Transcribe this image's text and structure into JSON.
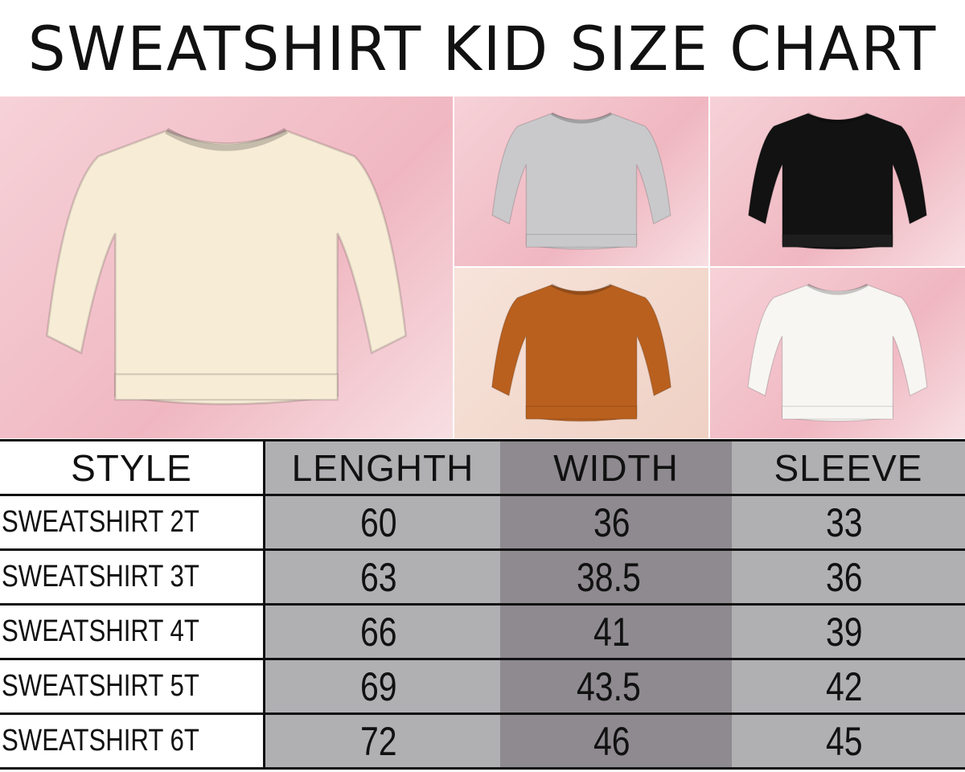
{
  "title": "SWEATSHIRT KID SIZE CHART",
  "photos": [
    {
      "color": "#f7ecd6",
      "label": "cream"
    },
    {
      "color": "#c9c9cb",
      "label": "gray"
    },
    {
      "color": "#121212",
      "label": "black"
    },
    {
      "color": "#b9601f",
      "label": "rust"
    },
    {
      "color": "#f7f6f3",
      "label": "white"
    }
  ],
  "table": {
    "headers": [
      "STYLE",
      "LENGHTH",
      "WIDTH",
      "SLEEVE"
    ],
    "rows": [
      [
        "SWEATSHIRT 2T",
        "60",
        "36",
        "33"
      ],
      [
        "SWEATSHIRT 3T",
        "63",
        "38.5",
        "36"
      ],
      [
        "SWEATSHIRT 4T",
        "66",
        "41",
        "39"
      ],
      [
        "SWEATSHIRT 5T",
        "69",
        "43.5",
        "42"
      ],
      [
        "SWEATSHIRT 6T",
        "72",
        "46",
        "45"
      ]
    ]
  },
  "colors": {
    "col_light": "#b0afb2",
    "col_dark": "#8e8a90",
    "border": "#111111"
  }
}
